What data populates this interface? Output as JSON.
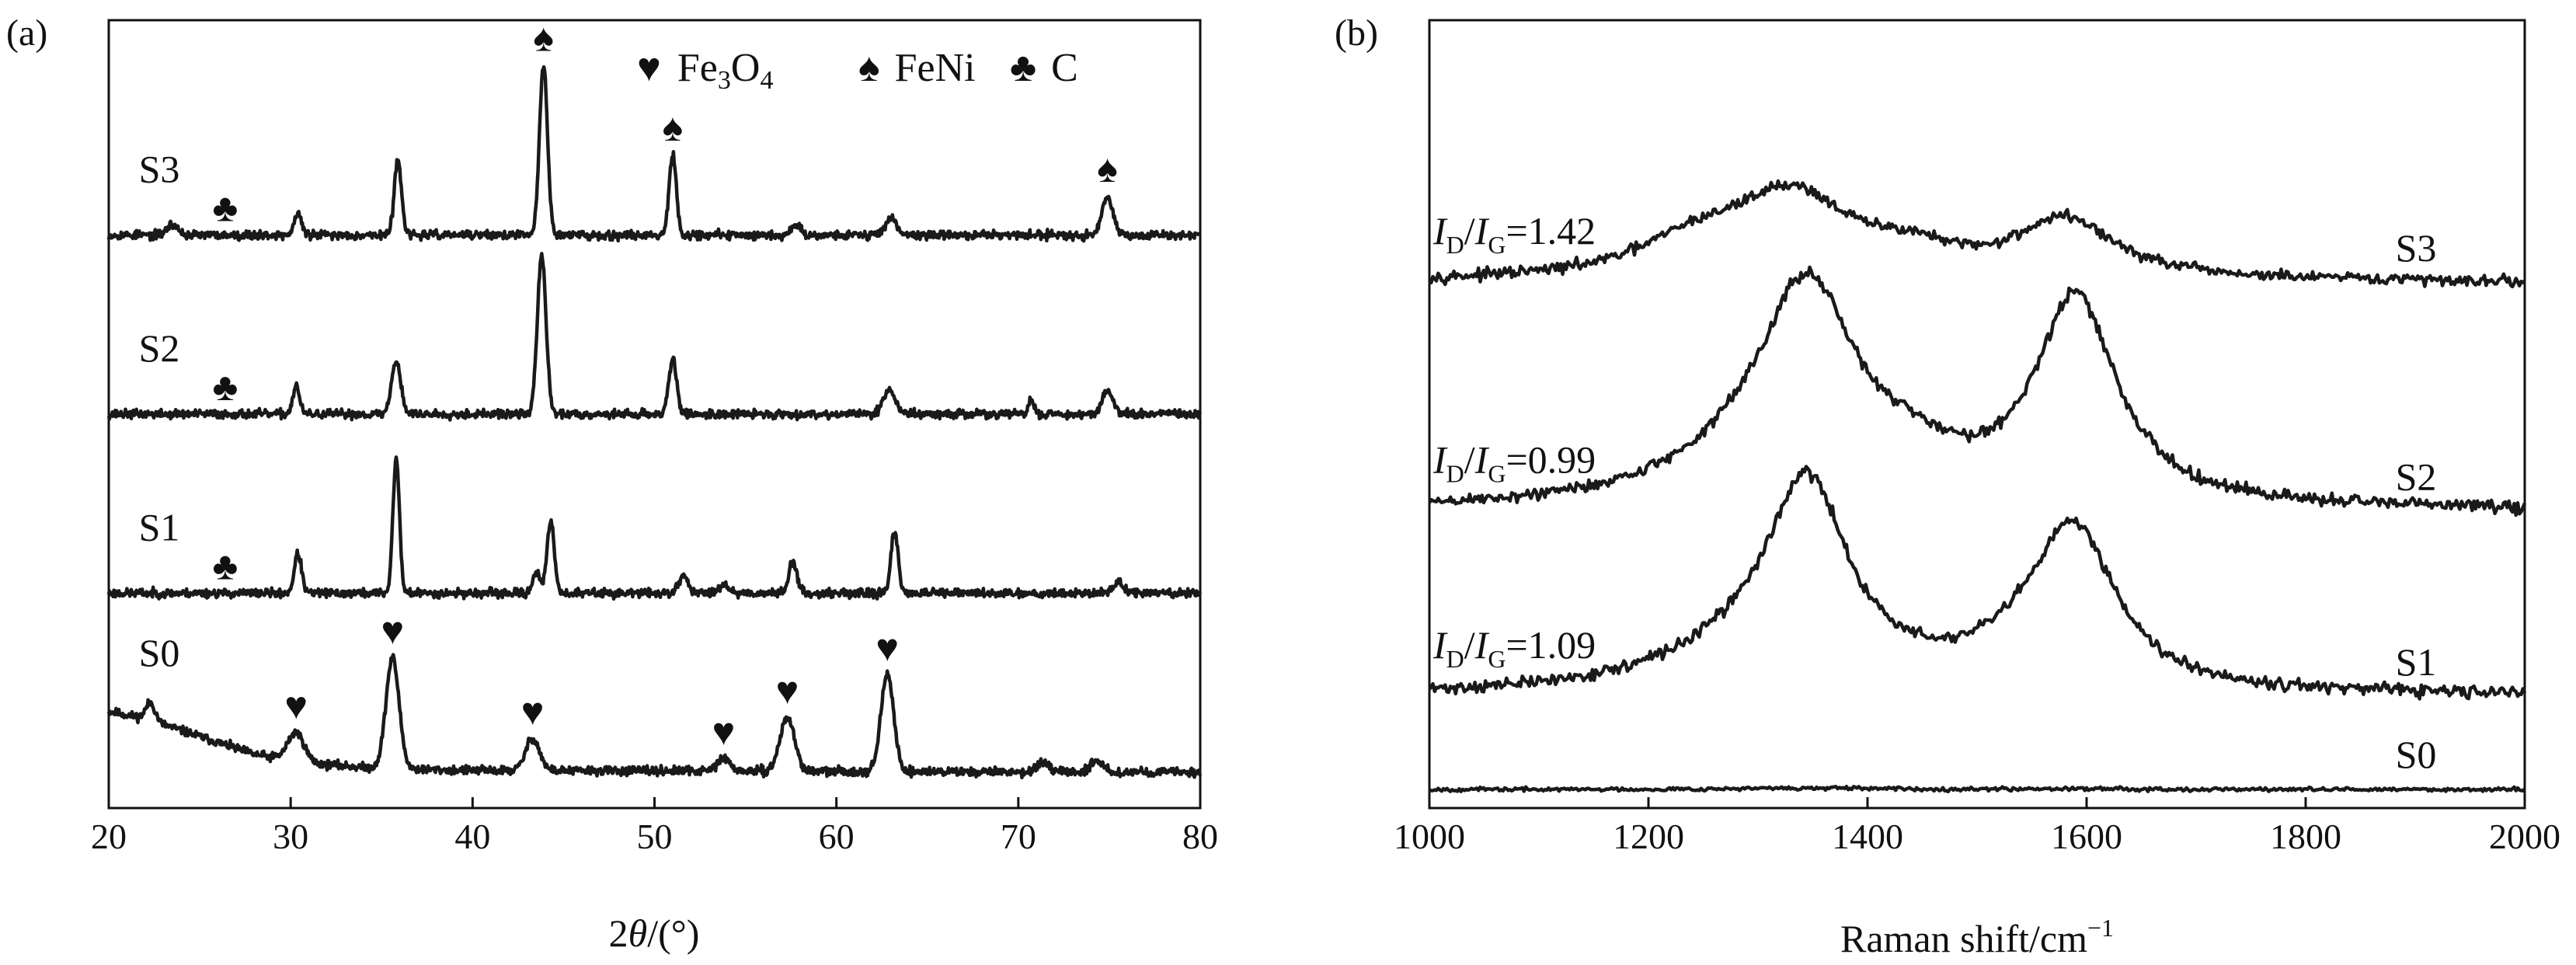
{
  "colors": {
    "line": "#1a1a1a",
    "axis": "#111111",
    "background": "#ffffff"
  },
  "chart_data": [
    {
      "panel_label": "(a)",
      "type": "line",
      "xlabel_parts": [
        "2",
        "θ",
        "/(°)"
      ],
      "ylabel": "",
      "xlim": [
        20,
        80
      ],
      "xticks": [
        20,
        30,
        40,
        50,
        60,
        70,
        80
      ],
      "y_ticks_shown": false,
      "legend": {
        "placement": "top",
        "entries": [
          {
            "symbol": "♥",
            "label_parts": [
              "Fe",
              "3",
              "O",
              "4"
            ]
          },
          {
            "symbol": "♠",
            "label_parts": [
              "FeNi"
            ]
          },
          {
            "symbol": "♣",
            "label_parts": [
              "C"
            ]
          }
        ]
      },
      "series": [
        {
          "name": "S0",
          "offset": 0.2,
          "noise": 0.012,
          "seed": 11,
          "baseline": [
            [
              20,
              0.34
            ],
            [
              22,
              0.3
            ],
            [
              25,
              0.2
            ],
            [
              28,
              0.1
            ],
            [
              31,
              0.05
            ],
            [
              35,
              0.02
            ],
            [
              40,
              0.01
            ],
            [
              80,
              0
            ]
          ],
          "peaks": [
            [
              22.3,
              0.1,
              0.25
            ],
            [
              30.3,
              0.16,
              0.45
            ],
            [
              35.6,
              0.62,
              0.36
            ],
            [
              43.3,
              0.18,
              0.38
            ],
            [
              53.8,
              0.07,
              0.35
            ],
            [
              57.3,
              0.3,
              0.4
            ],
            [
              62.8,
              0.54,
              0.35
            ],
            [
              71.3,
              0.05,
              0.3
            ],
            [
              74.3,
              0.07,
              0.3
            ]
          ],
          "markers": [
            {
              "symbol": "♥",
              "x": [
                30.3,
                35.6,
                43.3,
                53.8,
                57.3,
                62.8
              ]
            }
          ]
        },
        {
          "name": "S1",
          "offset": 1.2,
          "noise": 0.012,
          "seed": 23,
          "peaks": [
            [
              30.4,
              0.22,
              0.2
            ],
            [
              35.8,
              0.75,
              0.18
            ],
            [
              43.5,
              0.12,
              0.2
            ],
            [
              44.3,
              0.4,
              0.2
            ],
            [
              51.6,
              0.1,
              0.25
            ],
            [
              53.8,
              0.05,
              0.3
            ],
            [
              57.6,
              0.18,
              0.22
            ],
            [
              63.2,
              0.34,
              0.2
            ],
            [
              75.5,
              0.06,
              0.3
            ]
          ],
          "markers": [
            {
              "symbol": "♣",
              "x": [
                26.4
              ]
            }
          ]
        },
        {
          "name": "S2",
          "offset": 2.2,
          "noise": 0.012,
          "seed": 37,
          "peaks": [
            [
              30.3,
              0.16,
              0.18
            ],
            [
              35.8,
              0.3,
              0.25
            ],
            [
              43.8,
              0.88,
              0.24
            ],
            [
              51.0,
              0.3,
              0.22
            ],
            [
              62.9,
              0.13,
              0.35
            ],
            [
              70.7,
              0.08,
              0.15
            ],
            [
              74.9,
              0.13,
              0.3
            ]
          ],
          "markers": [
            {
              "symbol": "♣",
              "x": [
                26.4
              ]
            }
          ]
        },
        {
          "name": "S3",
          "offset": 3.2,
          "noise": 0.012,
          "seed": 53,
          "peaks": [
            [
              23.5,
              0.06,
              0.3
            ],
            [
              30.4,
              0.12,
              0.2
            ],
            [
              35.9,
              0.42,
              0.2
            ],
            [
              43.9,
              0.95,
              0.22
            ],
            [
              51.0,
              0.45,
              0.2
            ],
            [
              57.8,
              0.06,
              0.25
            ],
            [
              63.0,
              0.1,
              0.3
            ],
            [
              74.9,
              0.22,
              0.3
            ]
          ],
          "markers": [
            {
              "symbol": "♣",
              "x": [
                26.4
              ]
            },
            {
              "symbol": "♠",
              "x": [
                43.9,
                51.0,
                74.9
              ]
            }
          ]
        }
      ]
    },
    {
      "panel_label": "(b)",
      "type": "line",
      "xlabel": "Raman shift/cm",
      "xlabel_sup": "−1",
      "ylabel": "",
      "xlim": [
        1000,
        2000
      ],
      "xticks": [
        1000,
        1200,
        1400,
        1600,
        1800,
        2000
      ],
      "y_ticks_shown": false,
      "series": [
        {
          "name": "S0",
          "offset": 0.12,
          "noise": 0.006,
          "seed": 67,
          "peaks": [
            [
              1340,
              0.008,
              80
            ],
            [
              1590,
              0.006,
              60
            ]
          ]
        },
        {
          "name": "S1",
          "offset": 0.72,
          "noise": 0.02,
          "seed": 71,
          "ratio": {
            "label": "D",
            "label2": "G",
            "value": "=1.09"
          },
          "peaks": [
            [
              1345,
              1.2,
              45
            ],
            [
              1590,
              0.95,
              45
            ],
            [
              1300,
              0.25,
              100
            ],
            [
              1550,
              0.18,
              60
            ]
          ]
        },
        {
          "name": "S2",
          "offset": 1.92,
          "noise": 0.02,
          "seed": 89,
          "ratio": {
            "label": "D",
            "label2": "G",
            "value": "=0.99"
          },
          "peaks": [
            [
              1345,
              1.3,
              55
            ],
            [
              1590,
              1.32,
              45
            ],
            [
              1440,
              0.15,
              50
            ],
            [
              1300,
              0.2,
              100
            ]
          ]
        },
        {
          "name": "S3",
          "offset": 3.4,
          "noise": 0.018,
          "seed": 97,
          "ratio": {
            "label": "D",
            "label2": "G",
            "value": "=1.42"
          },
          "peaks": [
            [
              1330,
              0.55,
              70
            ],
            [
              1240,
              0.18,
              60
            ],
            [
              1580,
              0.38,
              55
            ],
            [
              1440,
              0.12,
              40
            ]
          ]
        }
      ]
    }
  ]
}
